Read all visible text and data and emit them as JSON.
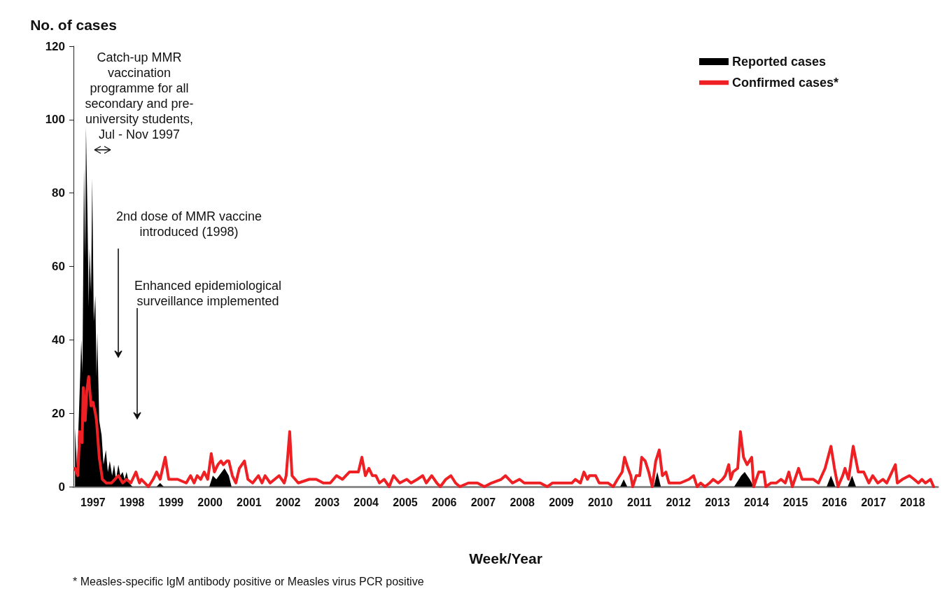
{
  "chart_data": {
    "type": "line",
    "ylabel": "No. of cases",
    "xlabel": "Week/Year",
    "xlim": [
      1997,
      2019.15
    ],
    "xticks": [
      {
        "value": 1997.5,
        "label": "1997"
      },
      {
        "value": 1998.5,
        "label": "1998"
      },
      {
        "value": 1999.5,
        "label": "1999"
      },
      {
        "value": 2000.5,
        "label": "2000"
      },
      {
        "value": 2001.5,
        "label": "2001"
      },
      {
        "value": 2002.5,
        "label": "2002"
      },
      {
        "value": 2003.5,
        "label": "2003"
      },
      {
        "value": 2004.5,
        "label": "2004"
      },
      {
        "value": 2005.5,
        "label": "2005"
      },
      {
        "value": 2006.5,
        "label": "2006"
      },
      {
        "value": 2007.5,
        "label": "2007"
      },
      {
        "value": 2008.5,
        "label": "2008"
      },
      {
        "value": 2009.5,
        "label": "2009"
      },
      {
        "value": 2010.5,
        "label": "2010"
      },
      {
        "value": 2011.5,
        "label": "2011"
      },
      {
        "value": 2012.5,
        "label": "2012"
      },
      {
        "value": 2013.5,
        "label": "2013"
      },
      {
        "value": 2014.5,
        "label": "2014"
      },
      {
        "value": 2015.5,
        "label": "2015"
      },
      {
        "value": 2016.5,
        "label": "2016"
      },
      {
        "value": 2017.5,
        "label": "2017"
      },
      {
        "value": 2018.5,
        "label": "2018"
      }
    ],
    "ylim": [
      0,
      120
    ],
    "yticks": [
      0,
      20,
      40,
      60,
      80,
      100,
      120
    ],
    "grid": false,
    "legend": "top right",
    "marker": "none",
    "series": [
      {
        "name": "Reported cases",
        "type": "area",
        "color": "#000000",
        "x": [
          1997.04,
          1997.09,
          1997.14,
          1997.2,
          1997.23,
          1997.27,
          1997.3,
          1997.32,
          1997.36,
          1997.39,
          1997.41,
          1997.45,
          1997.48,
          1997.52,
          1997.56,
          1997.59,
          1997.61,
          1997.66,
          1997.72,
          1997.77,
          1997.83,
          1997.88,
          1997.93,
          1997.99,
          1998.04,
          1998.09,
          1998.15,
          1998.2,
          1998.26,
          1998.31,
          1998.36,
          1998.42,
          1998.51,
          1999.13,
          1999.22,
          1999.31,
          2000.48,
          2000.57,
          2000.66,
          2000.8,
          2000.87,
          2000.98,
          2001.05,
          2011.01,
          2011.1,
          2011.19,
          2011.87,
          2011.96,
          2012.05,
          2013.93,
          2014.11,
          2014.2,
          2014.33,
          2014.43,
          2016.3,
          2016.41,
          2016.52,
          2016.84,
          2016.95,
          2017.05,
          2019.04
        ],
        "values": [
          16,
          5,
          20,
          40,
          31,
          87,
          62,
          98,
          73,
          49,
          65,
          53,
          84,
          45,
          52,
          30,
          42,
          18,
          14,
          6,
          10,
          4,
          7,
          3,
          6,
          2,
          6,
          3,
          4,
          2,
          4,
          1,
          0,
          0,
          1,
          0,
          0,
          3,
          2,
          4,
          5,
          3,
          0,
          0,
          2,
          0,
          0,
          4,
          0,
          0,
          3,
          4,
          2,
          0,
          0,
          3,
          0,
          0,
          3,
          0,
          0
        ]
      },
      {
        "name": "Confirmed cases*",
        "type": "line",
        "color": "#ee2024",
        "x": [
          1997.04,
          1997.11,
          1997.16,
          1997.22,
          1997.25,
          1997.3,
          1997.34,
          1997.39,
          1997.45,
          1997.5,
          1997.56,
          1997.59,
          1997.66,
          1997.74,
          1997.84,
          1997.97,
          1998.15,
          1998.26,
          1998.36,
          1998.47,
          1998.6,
          1998.69,
          1998.74,
          1998.83,
          1998.92,
          1999.04,
          1999.13,
          1999.22,
          1999.35,
          1999.44,
          1999.67,
          1999.89,
          2000.0,
          2000.09,
          2000.17,
          2000.26,
          2000.35,
          2000.44,
          2000.53,
          2000.61,
          2000.7,
          2000.78,
          2000.84,
          2000.93,
          2000.98,
          2001.07,
          2001.16,
          2001.25,
          2001.38,
          2001.47,
          2001.59,
          2001.74,
          2001.83,
          2001.91,
          2002.04,
          2002.27,
          2002.4,
          2002.45,
          2002.54,
          2002.6,
          2002.76,
          2003.04,
          2003.22,
          2003.4,
          2003.58,
          2003.74,
          2003.89,
          2004.07,
          2004.3,
          2004.39,
          2004.48,
          2004.57,
          2004.66,
          2004.75,
          2004.84,
          2004.96,
          2005.09,
          2005.2,
          2005.36,
          2005.54,
          2005.65,
          2005.81,
          2005.95,
          2006.04,
          2006.18,
          2006.31,
          2006.4,
          2006.54,
          2006.67,
          2006.79,
          2006.9,
          2007.12,
          2007.35,
          2007.53,
          2007.71,
          2007.96,
          2008.07,
          2008.16,
          2008.25,
          2008.43,
          2008.55,
          2008.96,
          2009.14,
          2009.27,
          2009.77,
          2009.86,
          2009.99,
          2010.08,
          2010.17,
          2010.22,
          2010.38,
          2010.47,
          2010.7,
          2010.83,
          2010.94,
          2011.06,
          2011.12,
          2011.21,
          2011.28,
          2011.33,
          2011.42,
          2011.51,
          2011.56,
          2011.65,
          2011.74,
          2011.83,
          2011.92,
          2012.01,
          2012.09,
          2012.18,
          2012.26,
          2012.55,
          2012.77,
          2012.89,
          2012.98,
          2013.07,
          2013.18,
          2013.3,
          2013.39,
          2013.52,
          2013.63,
          2013.7,
          2013.79,
          2013.84,
          2013.9,
          2014.02,
          2014.09,
          2014.17,
          2014.26,
          2014.38,
          2014.43,
          2014.56,
          2014.69,
          2014.74,
          2014.87,
          2015.01,
          2015.13,
          2015.24,
          2015.33,
          2015.42,
          2015.58,
          2015.67,
          2015.96,
          2016.09,
          2016.26,
          2016.41,
          2016.5,
          2016.59,
          2016.71,
          2016.77,
          2016.86,
          2016.98,
          2017.11,
          2017.25,
          2017.38,
          2017.48,
          2017.61,
          2017.74,
          2017.84,
          2018.06,
          2018.11,
          2018.24,
          2018.42,
          2018.54,
          2018.65,
          2018.74,
          2018.83,
          2018.96,
          2019.04
        ],
        "values": [
          5,
          3,
          15,
          12,
          27,
          18,
          26,
          30,
          22,
          23,
          20,
          18,
          8,
          2,
          1,
          1,
          3,
          1,
          2,
          1,
          4,
          1,
          2,
          1,
          0,
          2,
          4,
          2,
          8,
          2,
          2,
          1,
          3,
          1,
          3,
          2,
          4,
          2,
          9,
          4,
          6,
          7,
          6,
          7,
          7,
          3,
          1,
          5,
          7,
          2,
          1,
          3,
          1,
          3,
          1,
          3,
          1,
          3,
          15,
          3,
          1,
          2,
          2,
          1,
          1,
          3,
          2,
          4,
          4,
          8,
          3,
          5,
          3,
          3,
          1,
          2,
          0,
          3,
          1,
          2,
          1,
          2,
          3,
          1,
          3,
          1,
          0,
          2,
          3,
          1,
          0,
          1,
          1,
          0,
          1,
          2,
          3,
          2,
          1,
          2,
          1,
          1,
          0,
          1,
          1,
          2,
          1,
          4,
          2,
          3,
          3,
          1,
          1,
          0,
          2,
          4,
          8,
          5,
          3,
          0,
          3,
          3,
          8,
          7,
          4,
          0,
          7,
          10,
          3,
          4,
          1,
          1,
          2,
          3,
          0,
          1,
          0,
          1,
          2,
          1,
          2,
          3,
          6,
          2,
          4,
          5,
          15,
          8,
          6,
          8,
          0,
          4,
          4,
          0,
          1,
          1,
          2,
          1,
          4,
          0,
          5,
          2,
          2,
          1,
          5,
          11,
          5,
          0,
          3,
          5,
          2,
          11,
          4,
          4,
          1,
          3,
          1,
          2,
          1,
          6,
          1,
          2,
          3,
          2,
          1,
          2,
          1,
          2,
          0
        ]
      }
    ],
    "annotations": [
      "Catch-up MMR vaccination programme for all secondary and pre-university students, Jul - Nov 1997",
      "2nd dose of MMR vaccine introduced (1998)",
      "Enhanced epidemiological surveillance implemented",
      "* Measles-specific IgM antibody positive or Measles virus PCR positive"
    ]
  }
}
